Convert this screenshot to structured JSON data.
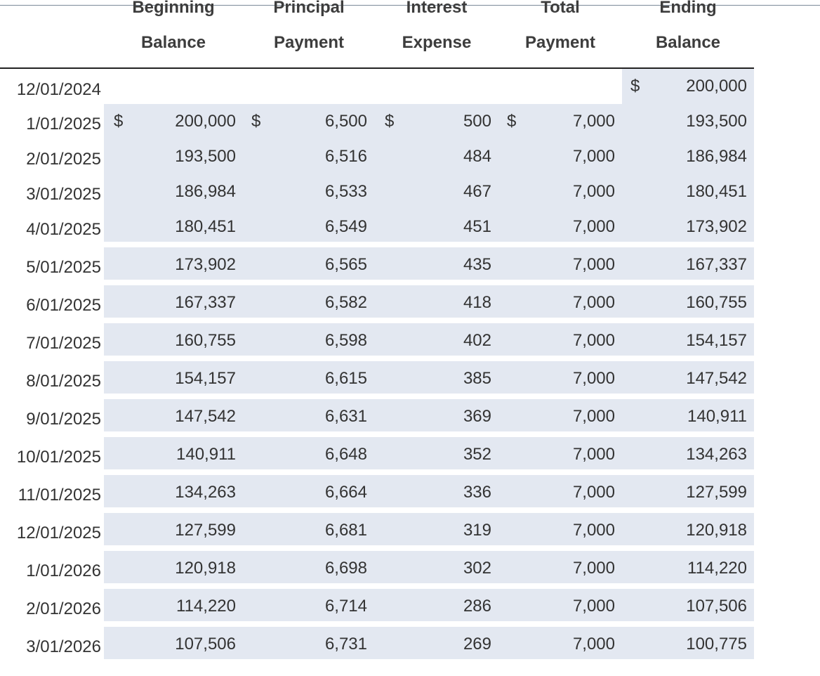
{
  "headers": {
    "beginning_balance": [
      "Beginning",
      "Balance"
    ],
    "principal_payment": [
      "Principal",
      "Payment"
    ],
    "interest_expense": [
      "Interest",
      "Expense"
    ],
    "total_payment": [
      "Total",
      "Payment"
    ],
    "ending_balance": [
      "Ending",
      "Balance"
    ]
  },
  "currency_symbol": "$",
  "opening": {
    "date": "12/01/2024",
    "ending_balance": "200,000"
  },
  "rows": [
    {
      "date": "1/01/2025",
      "beginning": "200,000",
      "principal": "6,500",
      "interest": "500",
      "total": "7,000",
      "ending": "193,500"
    },
    {
      "date": "2/01/2025",
      "beginning": "193,500",
      "principal": "6,516",
      "interest": "484",
      "total": "7,000",
      "ending": "186,984"
    },
    {
      "date": "3/01/2025",
      "beginning": "186,984",
      "principal": "6,533",
      "interest": "467",
      "total": "7,000",
      "ending": "180,451"
    },
    {
      "date": "4/01/2025",
      "beginning": "180,451",
      "principal": "6,549",
      "interest": "451",
      "total": "7,000",
      "ending": "173,902"
    },
    {
      "date": "5/01/2025",
      "beginning": "173,902",
      "principal": "6,565",
      "interest": "435",
      "total": "7,000",
      "ending": "167,337"
    },
    {
      "date": "6/01/2025",
      "beginning": "167,337",
      "principal": "6,582",
      "interest": "418",
      "total": "7,000",
      "ending": "160,755"
    },
    {
      "date": "7/01/2025",
      "beginning": "160,755",
      "principal": "6,598",
      "interest": "402",
      "total": "7,000",
      "ending": "154,157"
    },
    {
      "date": "8/01/2025",
      "beginning": "154,157",
      "principal": "6,615",
      "interest": "385",
      "total": "7,000",
      "ending": "147,542"
    },
    {
      "date": "9/01/2025",
      "beginning": "147,542",
      "principal": "6,631",
      "interest": "369",
      "total": "7,000",
      "ending": "140,911"
    },
    {
      "date": "10/01/2025",
      "beginning": "140,911",
      "principal": "6,648",
      "interest": "352",
      "total": "7,000",
      "ending": "134,263"
    },
    {
      "date": "11/01/2025",
      "beginning": "134,263",
      "principal": "6,664",
      "interest": "336",
      "total": "7,000",
      "ending": "127,599"
    },
    {
      "date": "12/01/2025",
      "beginning": "127,599",
      "principal": "6,681",
      "interest": "319",
      "total": "7,000",
      "ending": "120,918"
    },
    {
      "date": "1/01/2026",
      "beginning": "120,918",
      "principal": "6,698",
      "interest": "302",
      "total": "7,000",
      "ending": "114,220"
    },
    {
      "date": "2/01/2026",
      "beginning": "114,220",
      "principal": "6,714",
      "interest": "286",
      "total": "7,000",
      "ending": "107,506"
    },
    {
      "date": "3/01/2026",
      "beginning": "107,506",
      "principal": "6,731",
      "interest": "269",
      "total": "7,000",
      "ending": "100,775"
    }
  ],
  "colors": {
    "cell_fill": "#e3e8f1",
    "rule": "#222222",
    "text": "#333333"
  }
}
